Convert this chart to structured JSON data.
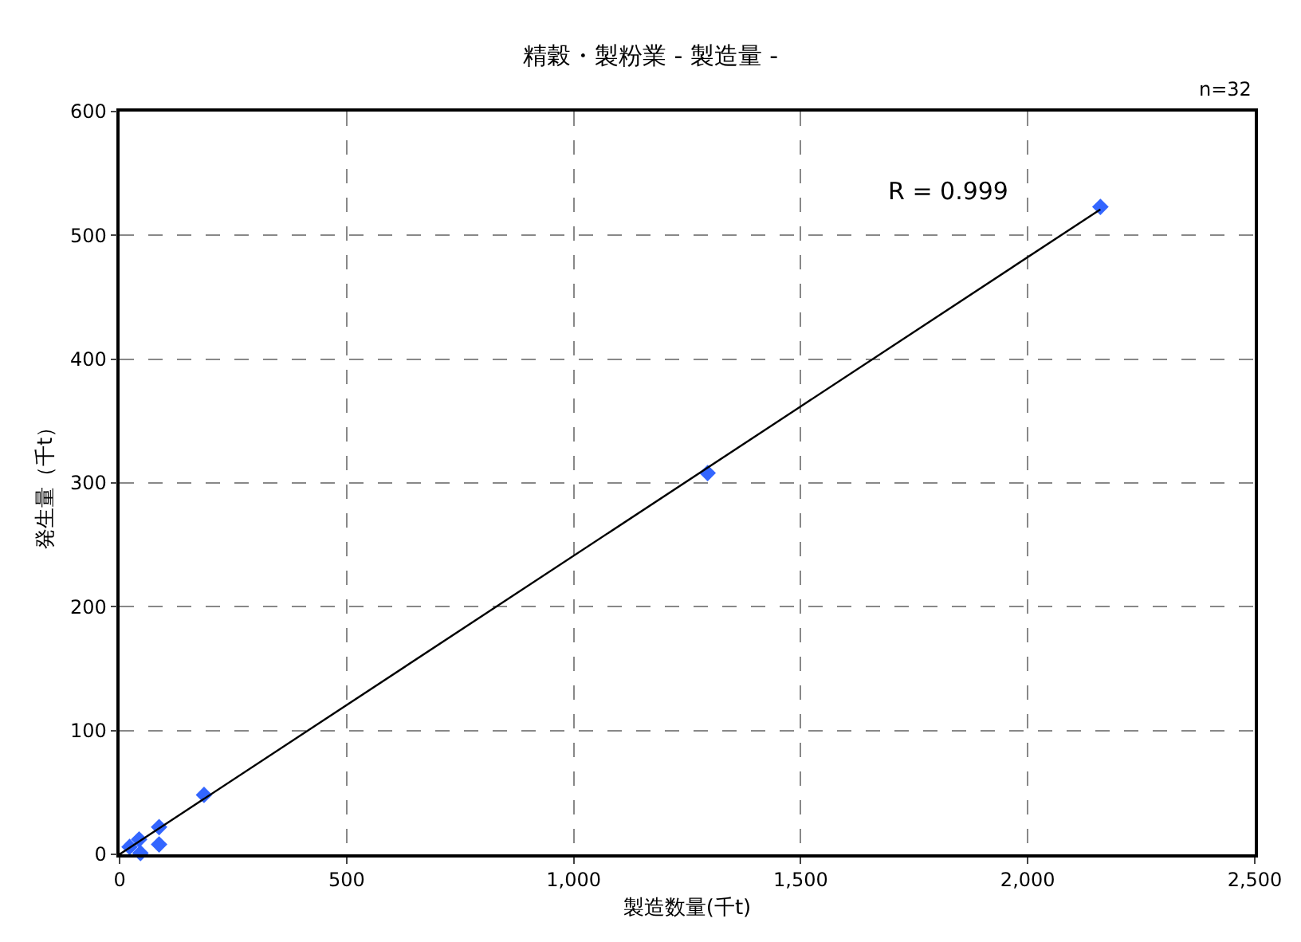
{
  "chart_data": {
    "type": "scatter",
    "title": "精穀・製粉業 - 製造量 -",
    "xlabel": "製造数量(千t)",
    "ylabel": "発生量（千t）",
    "annotations": [
      "n=32",
      "R = 0.999"
    ],
    "series": [
      {
        "color": "#3366ff",
        "marker": "diamond",
        "x": [
          2160,
          1295,
          186,
          87,
          87,
          43,
          46,
          22
        ],
        "values": [
          523,
          308,
          48,
          22,
          8,
          12,
          1,
          6
        ]
      },
      {
        "type": "line",
        "color": "#000000",
        "marker": "none",
        "line_style": "solid",
        "x": [
          0,
          2160
        ],
        "values": [
          0,
          521
        ]
      }
    ],
    "xlim": [
      0,
      2500
    ],
    "xticks": [
      0,
      500,
      {
        "value": 1000,
        "label": "1,000"
      },
      {
        "value": 1500,
        "label": "1,500"
      },
      {
        "value": 2000,
        "label": "2,000"
      },
      {
        "value": 2500,
        "label": "2,500"
      }
    ],
    "ylim": [
      0,
      600
    ],
    "yticks": [
      0,
      100,
      200,
      300,
      400,
      500,
      600
    ],
    "grid": true,
    "legend": false
  }
}
